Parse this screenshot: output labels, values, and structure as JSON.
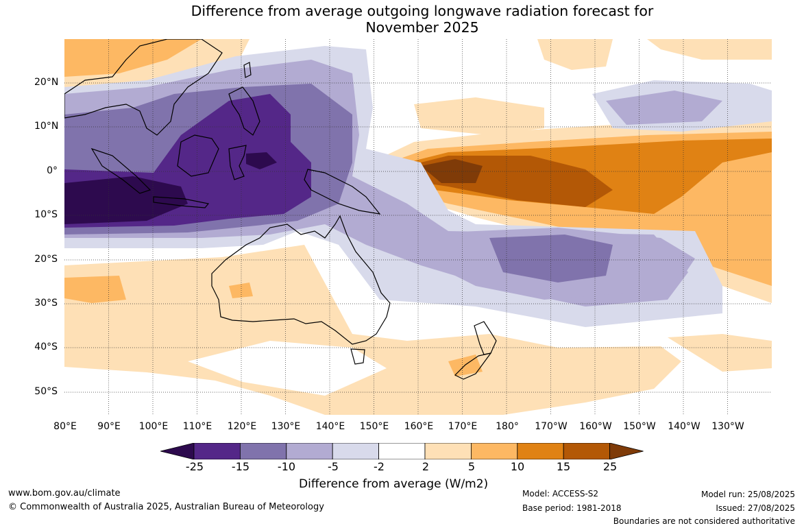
{
  "title_line1": "Difference from average outgoing longwave radiation forecast for",
  "title_line2": "November 2025",
  "lat_labels": [
    "20°N",
    "10°N",
    "0°",
    "10°S",
    "20°S",
    "30°S",
    "40°S",
    "50°S"
  ],
  "lon_labels": [
    "80°E",
    "90°E",
    "100°E",
    "110°E",
    "120°E",
    "130°E",
    "140°E",
    "150°E",
    "160°E",
    "170°E",
    "180°",
    "170°W",
    "160°W",
    "150°W",
    "140°W",
    "130°W"
  ],
  "colorbar": {
    "ticks": [
      "-25",
      "-15",
      "-10",
      "-5",
      "-2",
      "2",
      "5",
      "10",
      "15",
      "25"
    ],
    "colors": [
      "#2d0a4e",
      "#542788",
      "#8073ac",
      "#b2abd2",
      "#d8daeb",
      "#ffffff",
      "#fee0b6",
      "#fdb863",
      "#e08214",
      "#b35806",
      "#7f3b08"
    ],
    "title": "Difference from average (W/m2)"
  },
  "footer": {
    "website": "www.bom.gov.au/climate",
    "copyright": "© Commonwealth of Australia 2025, Australian Bureau of Meteorology",
    "model": "Model: ACCESS-S2",
    "base_period": "Base period: 1981-2018",
    "model_run": "Model run: 25/08/2025",
    "issued": "Issued: 27/08/2025",
    "boundaries": "Boundaries are not considered authoritative"
  }
}
